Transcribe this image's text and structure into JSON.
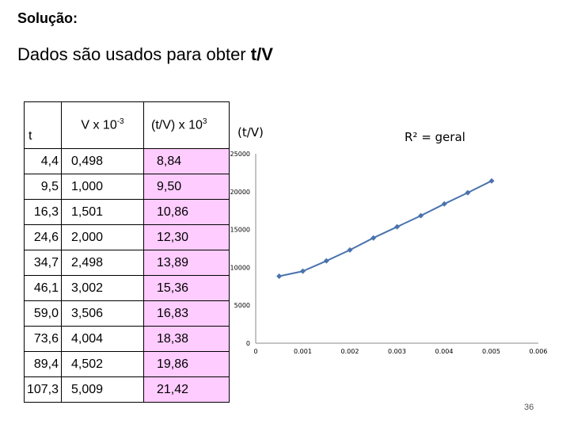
{
  "heading": "Solução:",
  "subtitle_plain": "Dados são usados para obter ",
  "subtitle_bold": "t/V",
  "table": {
    "header_t": "t",
    "header_v": "V x 10",
    "header_v_exp": "-3",
    "header_tv": "(t/V)  x 10",
    "header_tv_exp": "3",
    "rows": [
      [
        "4,4",
        "0,498",
        "8,84"
      ],
      [
        "9,5",
        "1,000",
        "9,50"
      ],
      [
        "16,3",
        "1,501",
        "10,86"
      ],
      [
        "24,6",
        "2,000",
        "12,30"
      ],
      [
        "34,7",
        "2,498",
        "13,89"
      ],
      [
        "46,1",
        "3,002",
        "15,36"
      ],
      [
        "59,0",
        "3,506",
        "16,83"
      ],
      [
        "73,6",
        "4,004",
        "18,38"
      ],
      [
        "89,4",
        "4,502",
        "19,86"
      ],
      [
        "107,3",
        "5,009",
        "21,42"
      ]
    ]
  },
  "chart_data": {
    "type": "line",
    "title": "(t/V)",
    "annotation": "R² = geral",
    "x": [
      0.000498,
      0.001,
      0.001501,
      0.002,
      0.002498,
      0.003002,
      0.003506,
      0.004004,
      0.004502,
      0.005009
    ],
    "series": [
      {
        "values": [
          8840,
          9500,
          10860,
          12300,
          13890,
          15360,
          16830,
          18380,
          19860,
          21420
        ]
      }
    ],
    "xlim": [
      0,
      0.006
    ],
    "ylim": [
      0,
      25000
    ],
    "xticks": [
      "0",
      "0.001",
      "0.002",
      "0.003",
      "0.004",
      "0.005",
      "0.006"
    ],
    "yticks": [
      "0",
      "5000",
      "10000",
      "15000",
      "20000",
      "25000"
    ],
    "line_color": "#4a73ad",
    "marker": "diamond",
    "grid": false
  },
  "page_number": "36"
}
